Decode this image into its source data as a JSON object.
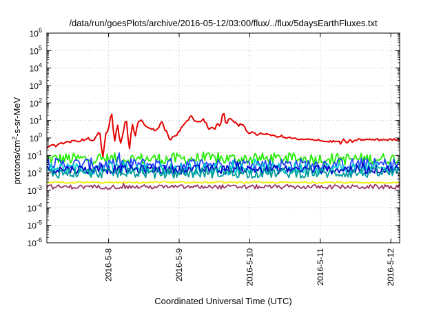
{
  "chart_data": {
    "type": "line",
    "title": "/data/run/goesPlots/archive/2016-05-12/03:00/flux/../flux/5daysEarthFluxes.txt",
    "xlabel": "Coordinated Universal Time (UTC)",
    "ylabel_base": "protons/cm",
    "ylabel_sup": "2",
    "ylabel_rest": "-s-sr-MeV",
    "yscale": "log",
    "ylim_exp": [
      -6,
      6
    ],
    "y_tick_exponents": [
      -6,
      -5,
      -4,
      -3,
      -2,
      -1,
      0,
      1,
      2,
      3,
      4,
      5,
      6
    ],
    "y_tick_base": "10",
    "x_range_days": [
      "2016-05-07 03:00",
      "2016-05-12 03:00"
    ],
    "x_ticks": [
      "2016-5-8",
      "2016-5-9",
      "2016-5-10",
      "2016-5-11",
      "2016-5-12"
    ],
    "grid": true,
    "colors": {
      "red": "#e50000",
      "green": "#22ee00",
      "cyan": "#00cccc",
      "blue_light": "#2244ff",
      "blue_dark": "#0000cc",
      "teal": "#009999",
      "yellow": "#eeee00",
      "purple": "#993366"
    },
    "series": [
      {
        "color_key": "red",
        "hourly_log10": [
          -0.6,
          -0.5,
          -0.4,
          -0.5,
          -0.4,
          -0.3,
          -0.3,
          -0.2,
          -0.2,
          -0.1,
          -0.2,
          -0.2,
          -0.1,
          -0.1,
          0.0,
          -0.2,
          -0.2,
          0.2,
          0.4,
          -1.2,
          0.2,
          0.5,
          1.5,
          -0.3,
          0.9,
          -0.4,
          0.4,
          1.2,
          -0.8,
          0.9,
          0.0,
          0.9,
          1.0,
          0.8,
          0.6,
          0.6,
          0.5,
          0.4,
          0.6,
          1.0,
          0.5,
          0.3,
          -0.2,
          0.1,
          0.1,
          0.4,
          0.6,
          0.9,
          1.0,
          1.4,
          1.0,
          0.9,
          0.9,
          1.1,
          0.9,
          0.5,
          0.6,
          0.5,
          0.8,
          0.6,
          1.6,
          0.7,
          1.2,
          1.0,
          0.9,
          0.7,
          0.8,
          0.8,
          0.3,
          0.3,
          0.3,
          0.2,
          0.2,
          0.3,
          0.2,
          0.2,
          0.2,
          0.1,
          0.1,
          0.1,
          0.1,
          0.0,
          0.0,
          0.0,
          0.0,
          -0.1,
          -0.1,
          -0.1,
          -0.1,
          -0.1,
          -0.1,
          -0.1,
          -0.1,
          -0.1,
          -0.2,
          -0.2,
          -0.2,
          -0.2,
          -0.2,
          -0.2,
          -0.3,
          -0.1,
          -0.3,
          -0.1,
          -0.3,
          -0.1,
          -0.1,
          -0.1,
          -0.1,
          -0.1,
          -0.1,
          -0.1,
          -0.1,
          -0.1,
          -0.1,
          -0.1,
          -0.1,
          -0.1,
          -0.1,
          -0.1,
          -0.1
        ]
      },
      {
        "color_key": "green",
        "base_log10": -1.2,
        "amp": 0.35
      },
      {
        "color_key": "blue_light",
        "base_log10": -1.5,
        "amp": 0.35
      },
      {
        "color_key": "cyan",
        "base_log10": -1.75,
        "amp": 0.35
      },
      {
        "color_key": "blue_dark",
        "base_log10": -1.8,
        "amp": 0.25
      },
      {
        "color_key": "teal",
        "base_log10": -2.0,
        "amp": 0.3
      },
      {
        "color_key": "yellow",
        "base_log10": -2.55,
        "amp": 0.05
      },
      {
        "color_key": "purple",
        "base_log10": -2.8,
        "amp": 0.12
      }
    ]
  }
}
